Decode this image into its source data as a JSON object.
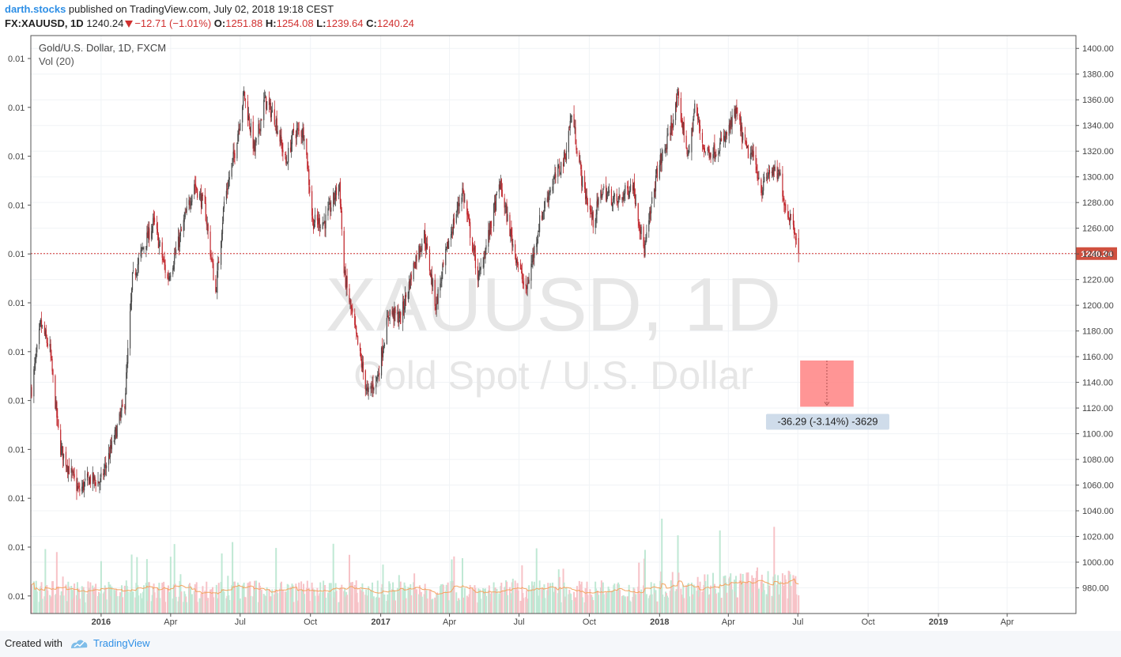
{
  "header": {
    "author": "darth.stocks",
    "published_text": " published on TradingView.com, July 02, 2018 19:18 CEST",
    "symbol": "FX:XAUUSD, 1D",
    "last": "1240.24",
    "change": "−12.71 (−1.01%)",
    "open_label": "O:",
    "open": "1251.88",
    "high_label": "H:",
    "high": "1254.08",
    "low_label": "L:",
    "low": "1239.64",
    "close_label": "C:",
    "close": "1240.24"
  },
  "legend": {
    "title": "Gold/U.S. Dollar, 1D, FXCM",
    "indicator": "Vol (20)"
  },
  "watermark": {
    "symbol": "XAUUSD, 1D",
    "name": "Gold Spot / U.S. Dollar"
  },
  "footer": {
    "created_with": "Created with",
    "brand": "TradingView"
  },
  "colors": {
    "up": "#4a4a4a",
    "down": "#c1272d",
    "price_line": "#d0302f",
    "price_badge": "#d0503f",
    "vol_up": "#bfe8d4",
    "vol_down": "#f7c2c7",
    "vol_ma": "#f4a460",
    "measure_fill": "#ff8a8a",
    "measure_label_bg": "#cfdcea",
    "watermark": "#e6e6e6",
    "grid": "#f0f3f6"
  },
  "chart_data": {
    "type": "candlestick",
    "title": "Gold/U.S. Dollar, 1D, FXCM",
    "y_right": {
      "min": 960,
      "max": 1410,
      "ticks": [
        980,
        1000,
        1020,
        1040,
        1060,
        1080,
        1100,
        1120,
        1140,
        1160,
        1180,
        1200,
        1220,
        1240,
        1260,
        1280,
        1300,
        1320,
        1340,
        1360,
        1380,
        1400
      ],
      "tick_labels": [
        "980.00",
        "1000.00",
        "1020.00",
        "1040.00",
        "1060.00",
        "1080.00",
        "1100.00",
        "1120.00",
        "1140.00",
        "1160.00",
        "1180.00",
        "1200.00",
        "1220.00",
        "1240.00",
        "1260.00",
        "1280.00",
        "1300.00",
        "1320.00",
        "1340.00",
        "1360.00",
        "1380.00",
        "1400.00"
      ]
    },
    "y_left": {
      "tick_labels": [
        "0.01",
        "0.01",
        "0.01",
        "0.01",
        "0.01",
        "0.01",
        "0.01",
        "0.01",
        "0.01",
        "0.01",
        "0.01",
        "0.01"
      ]
    },
    "x_axis": {
      "start": "2015-10-01",
      "end": "2019-06-30",
      "labels": [
        {
          "date": "2016-01-01",
          "text": "2016",
          "bold": true
        },
        {
          "date": "2016-04-01",
          "text": "Apr",
          "bold": false
        },
        {
          "date": "2016-07-01",
          "text": "Jul",
          "bold": false
        },
        {
          "date": "2016-10-01",
          "text": "Oct",
          "bold": false
        },
        {
          "date": "2017-01-01",
          "text": "2017",
          "bold": true
        },
        {
          "date": "2017-04-01",
          "text": "Apr",
          "bold": false
        },
        {
          "date": "2017-07-01",
          "text": "Jul",
          "bold": false
        },
        {
          "date": "2017-10-01",
          "text": "Oct",
          "bold": false
        },
        {
          "date": "2018-01-01",
          "text": "2018",
          "bold": true
        },
        {
          "date": "2018-04-01",
          "text": "Apr",
          "bold": false
        },
        {
          "date": "2018-07-01",
          "text": "Jul",
          "bold": false
        },
        {
          "date": "2018-10-01",
          "text": "Oct",
          "bold": false
        },
        {
          "date": "2019-01-01",
          "text": "2019",
          "bold": true
        },
        {
          "date": "2019-04-01",
          "text": "Apr",
          "bold": false
        }
      ]
    },
    "price_path": [
      {
        "date": "2015-10-02",
        "price": 1135
      },
      {
        "date": "2015-10-14",
        "price": 1185
      },
      {
        "date": "2015-10-26",
        "price": 1165
      },
      {
        "date": "2015-11-08",
        "price": 1090
      },
      {
        "date": "2015-11-22",
        "price": 1070
      },
      {
        "date": "2015-12-03",
        "price": 1055
      },
      {
        "date": "2015-12-16",
        "price": 1065
      },
      {
        "date": "2015-12-31",
        "price": 1062
      },
      {
        "date": "2016-01-15",
        "price": 1090
      },
      {
        "date": "2016-02-01",
        "price": 1125
      },
      {
        "date": "2016-02-11",
        "price": 1220
      },
      {
        "date": "2016-02-25",
        "price": 1245
      },
      {
        "date": "2016-03-10",
        "price": 1265
      },
      {
        "date": "2016-03-28",
        "price": 1220
      },
      {
        "date": "2016-04-12",
        "price": 1250
      },
      {
        "date": "2016-05-02",
        "price": 1295
      },
      {
        "date": "2016-05-16",
        "price": 1275
      },
      {
        "date": "2016-05-30",
        "price": 1210
      },
      {
        "date": "2016-06-10",
        "price": 1280
      },
      {
        "date": "2016-06-24",
        "price": 1320
      },
      {
        "date": "2016-07-06",
        "price": 1365
      },
      {
        "date": "2016-07-20",
        "price": 1320
      },
      {
        "date": "2016-08-02",
        "price": 1360
      },
      {
        "date": "2016-08-16",
        "price": 1345
      },
      {
        "date": "2016-08-30",
        "price": 1310
      },
      {
        "date": "2016-09-09",
        "price": 1335
      },
      {
        "date": "2016-09-23",
        "price": 1335
      },
      {
        "date": "2016-10-04",
        "price": 1265
      },
      {
        "date": "2016-10-20",
        "price": 1265
      },
      {
        "date": "2016-11-08",
        "price": 1295
      },
      {
        "date": "2016-11-14",
        "price": 1225
      },
      {
        "date": "2016-11-30",
        "price": 1175
      },
      {
        "date": "2016-12-15",
        "price": 1130
      },
      {
        "date": "2016-12-28",
        "price": 1145
      },
      {
        "date": "2017-01-12",
        "price": 1195
      },
      {
        "date": "2017-01-27",
        "price": 1190
      },
      {
        "date": "2017-02-15",
        "price": 1235
      },
      {
        "date": "2017-02-27",
        "price": 1255
      },
      {
        "date": "2017-03-14",
        "price": 1200
      },
      {
        "date": "2017-03-31",
        "price": 1250
      },
      {
        "date": "2017-04-18",
        "price": 1290
      },
      {
        "date": "2017-05-09",
        "price": 1220
      },
      {
        "date": "2017-05-26",
        "price": 1265
      },
      {
        "date": "2017-06-06",
        "price": 1295
      },
      {
        "date": "2017-06-22",
        "price": 1250
      },
      {
        "date": "2017-07-10",
        "price": 1210
      },
      {
        "date": "2017-07-28",
        "price": 1265
      },
      {
        "date": "2017-08-10",
        "price": 1290
      },
      {
        "date": "2017-08-30",
        "price": 1315
      },
      {
        "date": "2017-09-08",
        "price": 1350
      },
      {
        "date": "2017-09-22",
        "price": 1295
      },
      {
        "date": "2017-10-06",
        "price": 1265
      },
      {
        "date": "2017-10-18",
        "price": 1290
      },
      {
        "date": "2017-11-06",
        "price": 1280
      },
      {
        "date": "2017-11-27",
        "price": 1295
      },
      {
        "date": "2017-12-12",
        "price": 1242
      },
      {
        "date": "2017-12-29",
        "price": 1305
      },
      {
        "date": "2018-01-10",
        "price": 1325
      },
      {
        "date": "2018-01-25",
        "price": 1360
      },
      {
        "date": "2018-02-08",
        "price": 1315
      },
      {
        "date": "2018-02-16",
        "price": 1355
      },
      {
        "date": "2018-03-01",
        "price": 1320
      },
      {
        "date": "2018-03-14",
        "price": 1320
      },
      {
        "date": "2018-03-28",
        "price": 1330
      },
      {
        "date": "2018-04-11",
        "price": 1350
      },
      {
        "date": "2018-04-25",
        "price": 1320
      },
      {
        "date": "2018-05-04",
        "price": 1315
      },
      {
        "date": "2018-05-15",
        "price": 1290
      },
      {
        "date": "2018-05-25",
        "price": 1305
      },
      {
        "date": "2018-06-08",
        "price": 1300
      },
      {
        "date": "2018-06-15",
        "price": 1275
      },
      {
        "date": "2018-06-25",
        "price": 1265
      },
      {
        "date": "2018-06-29",
        "price": 1252
      },
      {
        "date": "2018-07-02",
        "price": 1240.24
      }
    ],
    "last_price": 1240.24,
    "last_price_label": "1240.24",
    "measure_box": {
      "date_start": "2018-07-04",
      "date_end": "2018-09-12",
      "price_from": 1157,
      "price_to": 1121,
      "label": "-36.29 (-3.14%) -3629"
    },
    "volume": {
      "ma_length": 20,
      "ma_label": "Vol (20)"
    }
  }
}
